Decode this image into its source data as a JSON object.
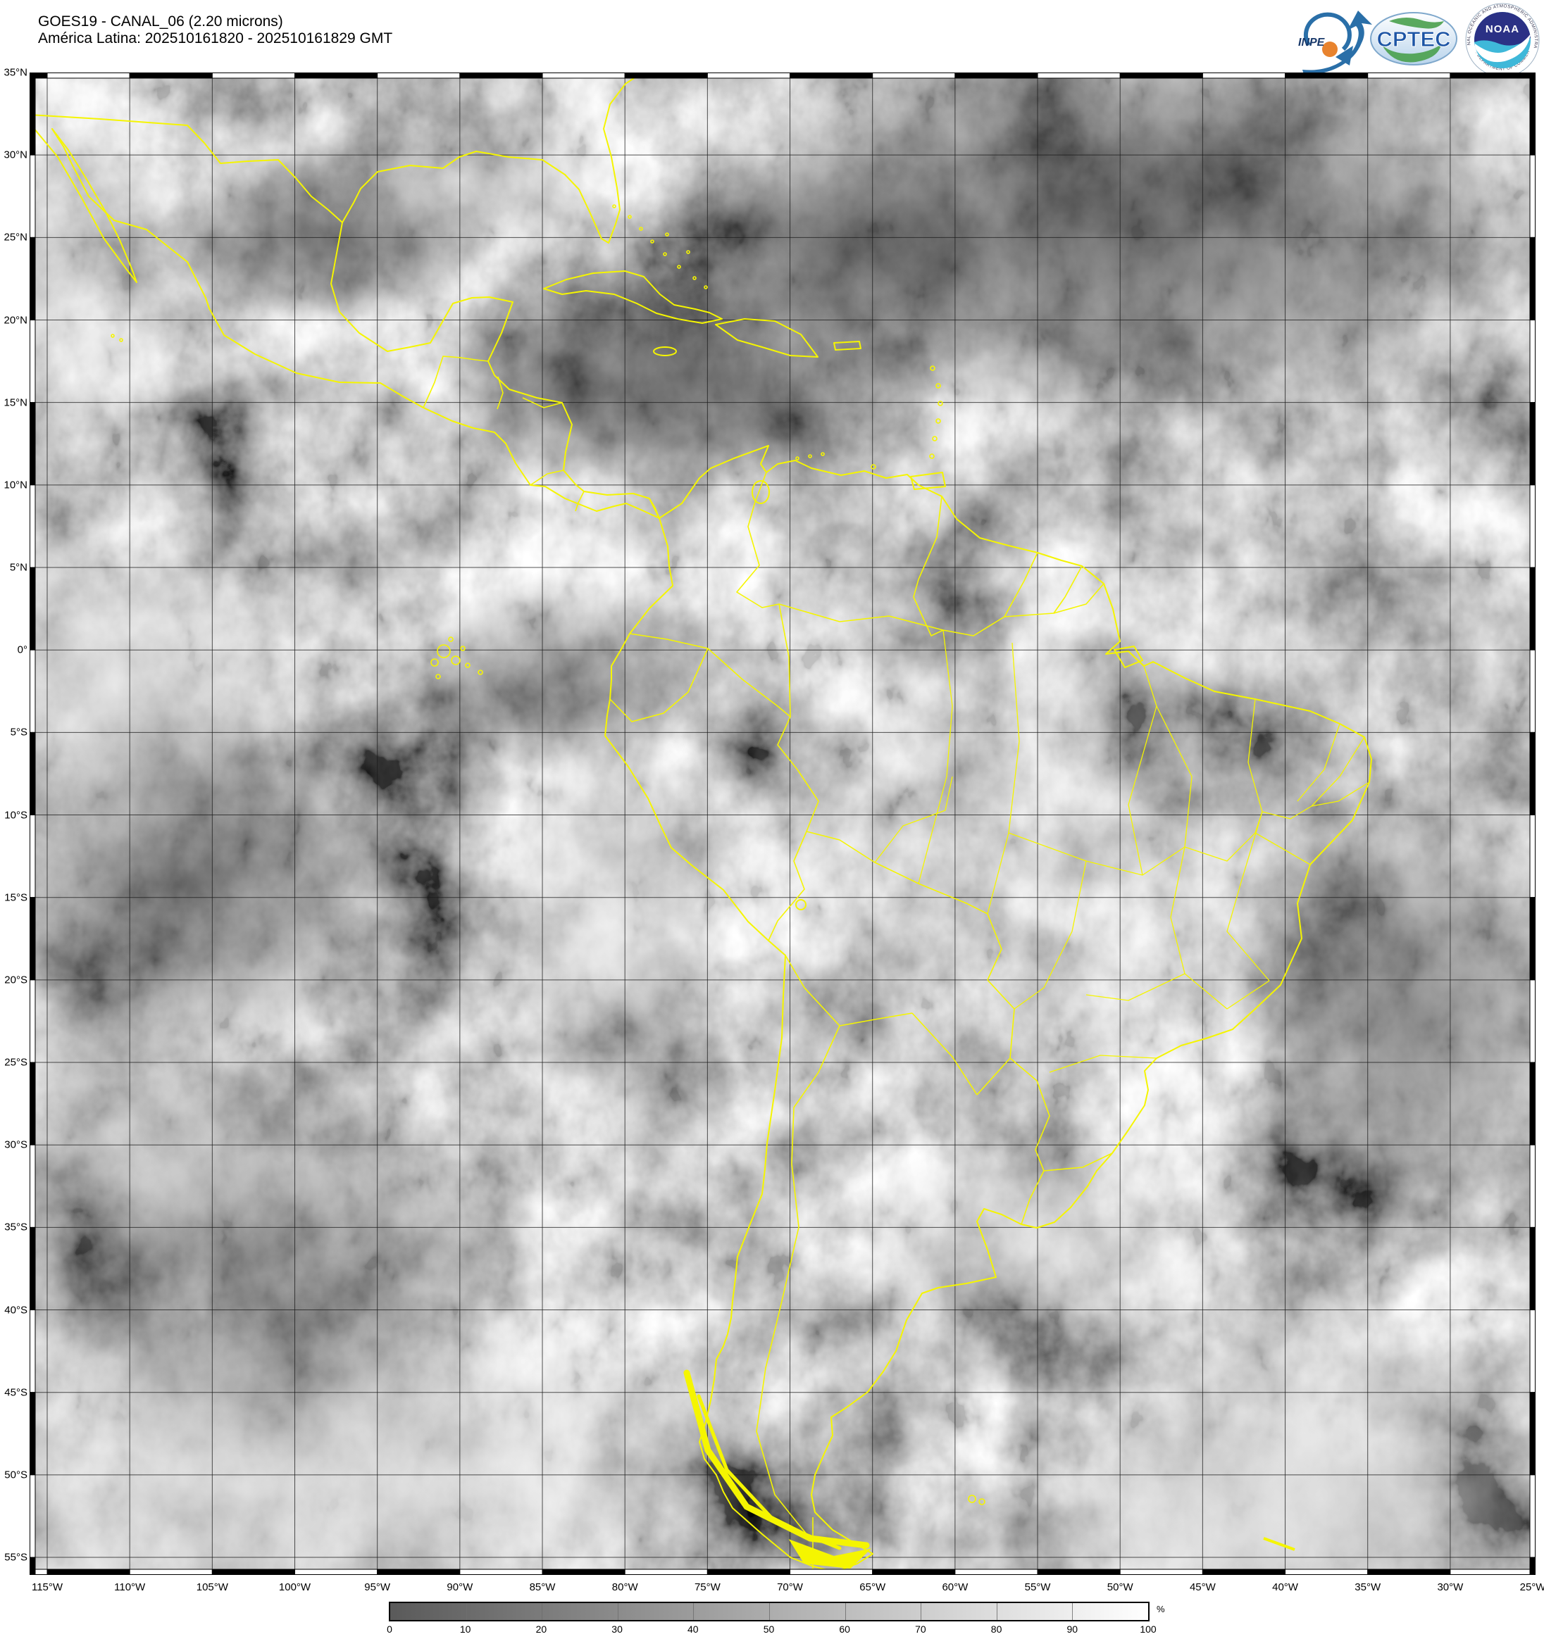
{
  "header": {
    "title_line1": "GOES19 - CANAL_06 (2.20 microns)",
    "title_line2": "América Latina: 202510161820 - 202510161829 GMT",
    "logos": {
      "inpe_label": "INPE",
      "cptec_label": "CPTEC",
      "noaa_label": "NOAA",
      "noaa_ring_top": "NATIONAL OCEANIC AND ATMOSPHERIC ADMINISTRATION",
      "noaa_ring_bottom": "U.S. DEPARTMENT OF COMMERCE"
    }
  },
  "map": {
    "lat_labels": [
      "35°N",
      "30°N",
      "25°N",
      "20°N",
      "15°N",
      "10°N",
      "5°N",
      "0°",
      "5°S",
      "10°S",
      "15°S",
      "20°S",
      "25°S",
      "30°S",
      "35°S",
      "40°S",
      "45°S",
      "50°S",
      "55°S"
    ],
    "lon_labels": [
      "115°W",
      "110°W",
      "105°W",
      "100°W",
      "95°W",
      "90°W",
      "85°W",
      "80°W",
      "75°W",
      "70°W",
      "65°W",
      "60°W",
      "55°W",
      "50°W",
      "45°W",
      "40°W",
      "35°W",
      "30°W",
      "25°W"
    ],
    "border_color": "#f5f500"
  },
  "colorbar": {
    "ticks": [
      "0",
      "10",
      "20",
      "30",
      "40",
      "50",
      "60",
      "70",
      "80",
      "90",
      "100"
    ],
    "unit": "%",
    "min_color": "#5a5a5a",
    "max_color": "#ffffff"
  }
}
